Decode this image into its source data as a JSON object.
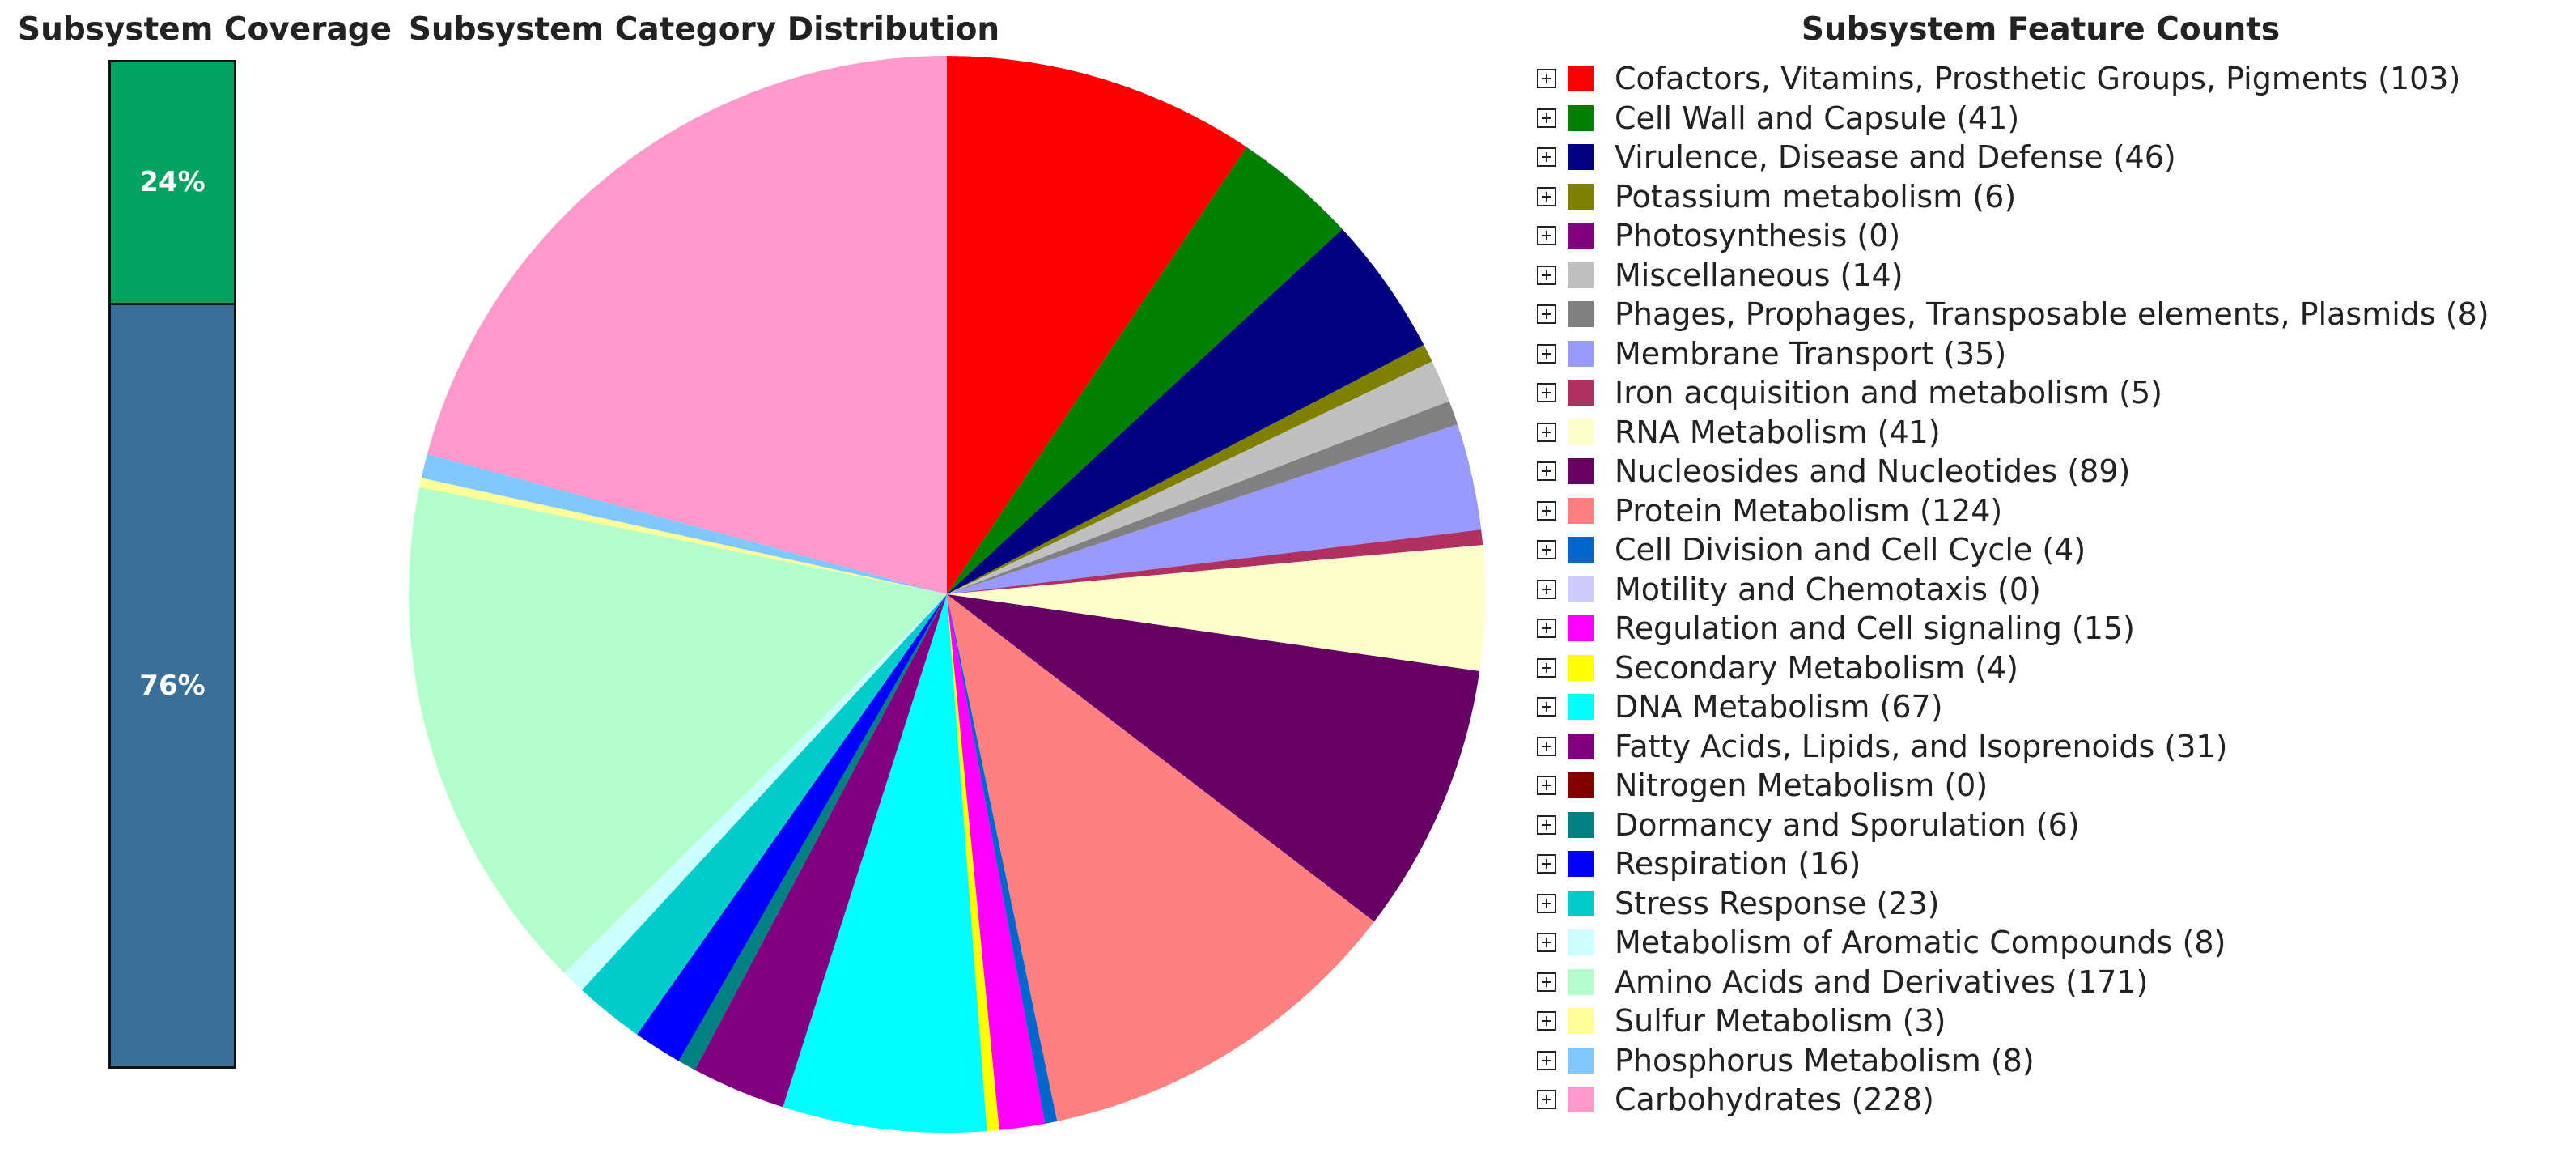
{
  "coverage": {
    "title": "Subsystem Coverage",
    "segments": [
      {
        "label": "24%",
        "percent": 24,
        "color": "#00a35f"
      },
      {
        "label": "76%",
        "percent": 76,
        "color": "#3a7098"
      }
    ]
  },
  "chart_data": {
    "type": "pie",
    "title": "Subsystem Category Distribution",
    "legend_title": "Subsystem Feature Counts",
    "legend_position": "right",
    "slices": [
      {
        "label": "Cofactors, Vitamins, Prosthetic Groups, Pigments",
        "value": 103,
        "color": "#ff0000"
      },
      {
        "label": "Cell Wall and Capsule",
        "value": 41,
        "color": "#008000"
      },
      {
        "label": "Virulence, Disease and Defense",
        "value": 46,
        "color": "#000080"
      },
      {
        "label": "Potassium metabolism",
        "value": 6,
        "color": "#808000"
      },
      {
        "label": "Photosynthesis",
        "value": 0,
        "color": "#800080"
      },
      {
        "label": "Miscellaneous",
        "value": 14,
        "color": "#c0c0c0"
      },
      {
        "label": "Phages, Prophages, Transposable elements, Plasmids",
        "value": 8,
        "color": "#808080"
      },
      {
        "label": "Membrane Transport",
        "value": 35,
        "color": "#9999ff"
      },
      {
        "label": "Iron acquisition and metabolism",
        "value": 5,
        "color": "#b03060"
      },
      {
        "label": "RNA Metabolism",
        "value": 41,
        "color": "#ffffcc"
      },
      {
        "label": "Nucleosides and Nucleotides",
        "value": 89,
        "color": "#660066"
      },
      {
        "label": "Protein Metabolism",
        "value": 124,
        "color": "#ff8080"
      },
      {
        "label": "Cell Division and Cell Cycle",
        "value": 4,
        "color": "#0066cc"
      },
      {
        "label": "Motility and Chemotaxis",
        "value": 0,
        "color": "#ccccff"
      },
      {
        "label": "Regulation and Cell signaling",
        "value": 15,
        "color": "#ff00ff"
      },
      {
        "label": "Secondary Metabolism",
        "value": 4,
        "color": "#ffff00"
      },
      {
        "label": "DNA Metabolism",
        "value": 67,
        "color": "#00ffff"
      },
      {
        "label": "Fatty Acids, Lipids, and Isoprenoids",
        "value": 31,
        "color": "#800080"
      },
      {
        "label": "Nitrogen Metabolism",
        "value": 0,
        "color": "#800000"
      },
      {
        "label": "Dormancy and Sporulation",
        "value": 6,
        "color": "#008080"
      },
      {
        "label": "Respiration",
        "value": 16,
        "color": "#0000ff"
      },
      {
        "label": "Stress Response",
        "value": 23,
        "color": "#00cccc"
      },
      {
        "label": "Metabolism of Aromatic Compounds",
        "value": 8,
        "color": "#ccffff"
      },
      {
        "label": "Amino Acids and Derivatives",
        "value": 171,
        "color": "#b3ffcc"
      },
      {
        "label": "Sulfur Metabolism",
        "value": 3,
        "color": "#ffff99"
      },
      {
        "label": "Phosphorus Metabolism",
        "value": 8,
        "color": "#80c8ff"
      },
      {
        "label": "Carbohydrates",
        "value": 228,
        "color": "#ff99cc"
      }
    ]
  }
}
